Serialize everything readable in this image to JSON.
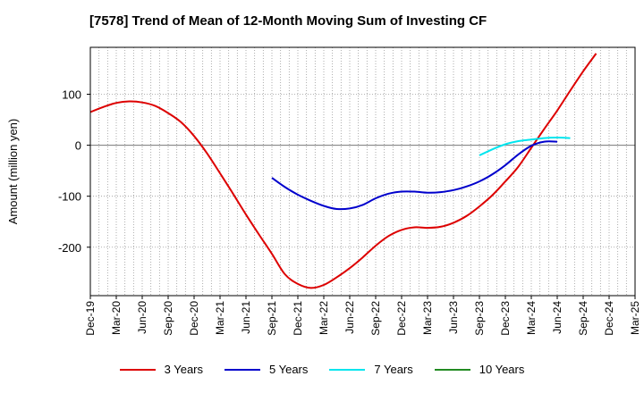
{
  "chart_data": {
    "type": "line",
    "title": "[7578]  Trend of Mean of 12-Month Moving Sum of Investing CF",
    "xlabel": "",
    "ylabel": "Amount (million yen)",
    "ylim": [
      -295,
      192
    ],
    "y_ticks": [
      100,
      0,
      -100,
      -200
    ],
    "y_tick_labels": [
      "100",
      "0",
      "-100",
      "-200"
    ],
    "x_tick_labels": [
      "Dec-19",
      "Mar-20",
      "Jun-20",
      "Sep-20",
      "Dec-20",
      "Mar-21",
      "Jun-21",
      "Sep-21",
      "Dec-21",
      "Mar-22",
      "Jun-22",
      "Sep-22",
      "Dec-22",
      "Mar-23",
      "Jun-23",
      "Sep-23",
      "Dec-23",
      "Mar-24",
      "Jun-24",
      "Sep-24",
      "Dec-24",
      "Mar-25"
    ],
    "x_tick_labels_extra": "Mar-25 then ends at Mar-25",
    "grid": true,
    "legend_position": "bottom",
    "series": [
      {
        "name": "3 Years",
        "color": "#dd0000",
        "start_index": 0,
        "values": [
          65,
          75,
          83,
          86,
          84,
          77,
          63,
          45,
          18,
          -16,
          -55,
          -95,
          -136,
          -175,
          -213,
          -253,
          -272,
          -280,
          -274,
          -259,
          -241,
          -220,
          -197,
          -178,
          -166,
          -161,
          -162,
          -160,
          -152,
          -139,
          -120,
          -98,
          -71,
          -42,
          -5,
          32,
          68,
          107,
          145,
          180
        ]
      },
      {
        "name": "5 Years",
        "color": "#0000cc",
        "start_index": 21,
        "values": [
          -64,
          -82,
          -97,
          -109,
          -119,
          -125,
          -124,
          -117,
          -104,
          -95,
          -91,
          -91,
          -93,
          -92,
          -88,
          -81,
          -71,
          -57,
          -39,
          -18,
          -1,
          7,
          7
        ]
      },
      {
        "name": "7 Years",
        "color": "#00e5ee",
        "start_index": 45,
        "values": [
          -20,
          -8,
          2,
          8,
          11,
          14,
          15,
          14
        ]
      },
      {
        "name": "10 Years",
        "color": "#228B22",
        "start_index": 0,
        "values": []
      }
    ]
  }
}
